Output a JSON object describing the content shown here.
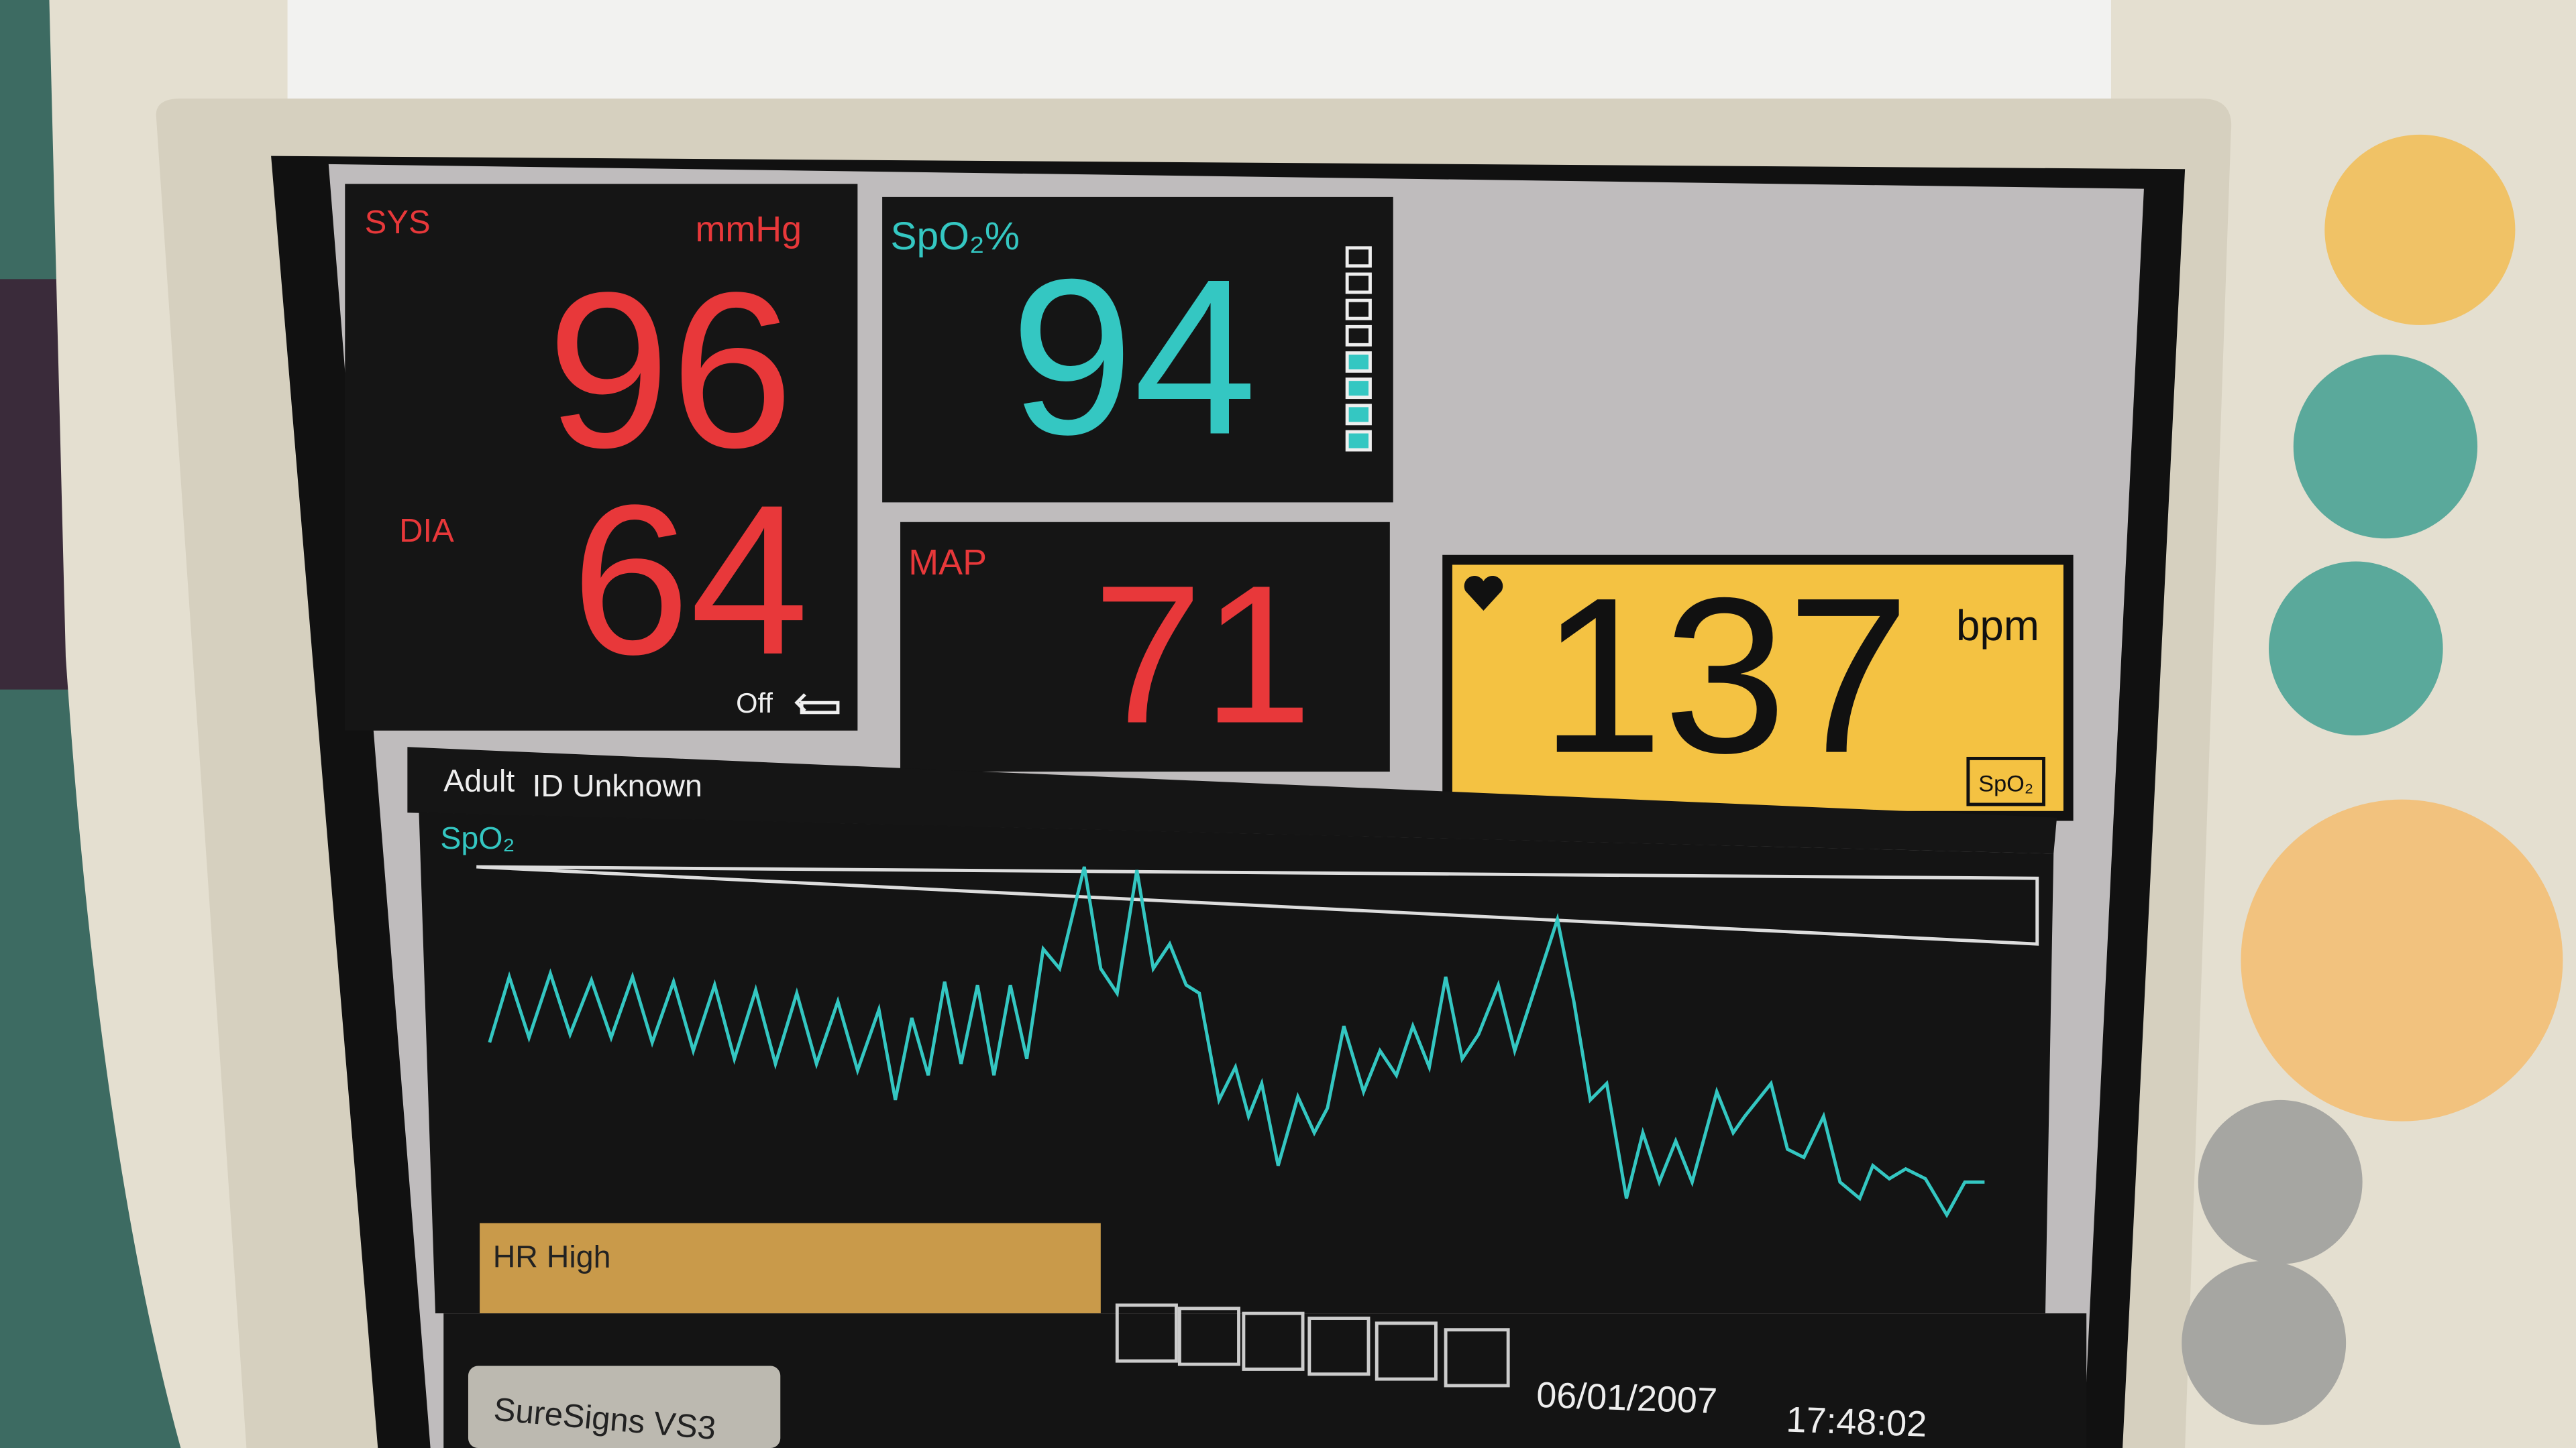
{
  "bp": {
    "sys_label": "SYS",
    "unit": "mmHg",
    "sys": 96,
    "dia_label": "DIA",
    "dia": 64,
    "auto_mode": "Off"
  },
  "spo2": {
    "label": "SpO₂%",
    "value": 94
  },
  "map": {
    "label": "MAP",
    "value": 71
  },
  "hr": {
    "value": 137,
    "unit": "bpm",
    "source": "SpO₂"
  },
  "patient": {
    "category": "Adult",
    "id": "ID Unknown"
  },
  "wave": {
    "label": "SpO₂"
  },
  "alarm": {
    "message": "HR High"
  },
  "status": {
    "date": "06/01/2007",
    "time": "17:48:02"
  },
  "device": {
    "model": "SureSigns VS3"
  }
}
